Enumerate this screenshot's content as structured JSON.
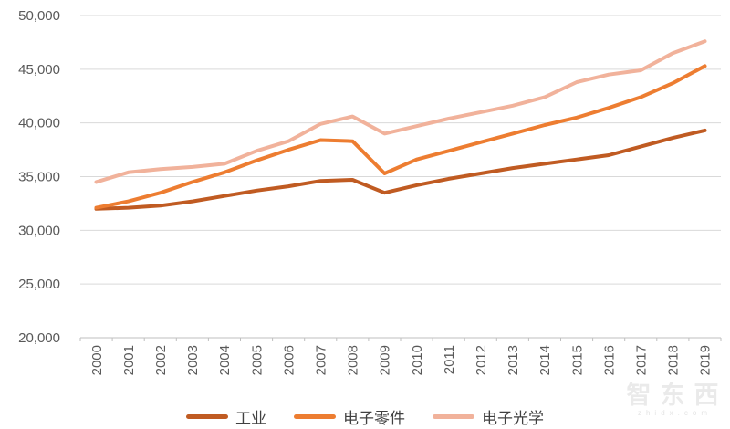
{
  "chart_data": {
    "type": "line",
    "title": "",
    "years": [
      "2000",
      "2001",
      "2002",
      "2003",
      "2004",
      "2005",
      "2006",
      "2007",
      "2008",
      "2009",
      "2010",
      "2011",
      "2012",
      "2013",
      "2014",
      "2015",
      "2016",
      "2017",
      "2018",
      "2019"
    ],
    "series": [
      {
        "name": "工业",
        "color": "#C05B22",
        "values": [
          32000,
          32100,
          32300,
          32700,
          33200,
          33700,
          34100,
          34600,
          34700,
          33500,
          34200,
          34800,
          35300,
          35800,
          36200,
          36600,
          37000,
          37800,
          38600,
          39300
        ]
      },
      {
        "name": "电子零件",
        "color": "#ED7D31",
        "values": [
          32100,
          32700,
          33500,
          34500,
          35400,
          36500,
          37500,
          38400,
          38300,
          35300,
          36600,
          37400,
          38200,
          39000,
          39800,
          40500,
          41400,
          42400,
          43700,
          45300
        ]
      },
      {
        "name": "电子光学",
        "color": "#F1B29B",
        "values": [
          34500,
          35400,
          35700,
          35900,
          36200,
          37400,
          38300,
          39900,
          40600,
          39000,
          39700,
          40400,
          41000,
          41600,
          42400,
          43800,
          44500,
          44900,
          46500,
          47600
        ]
      }
    ],
    "ylim": [
      20000,
      50000
    ],
    "ytick_step": 5000,
    "ytick_labels": [
      "20,000",
      "25,000",
      "30,000",
      "35,000",
      "40,000",
      "45,000",
      "50,000"
    ],
    "xlabel": "",
    "ylabel": "",
    "legend_position": "bottom",
    "grid": "horizontal"
  },
  "watermark": {
    "brand": "智东西",
    "domain": "zhidx.com"
  },
  "theme": {
    "gridline": "#D9D9D9",
    "axis_line": "#BFBFBF",
    "tick_label": "#595959",
    "legend_text": "#404040",
    "watermark_color": "#EAEAEA",
    "background": "#FFFFFF"
  }
}
